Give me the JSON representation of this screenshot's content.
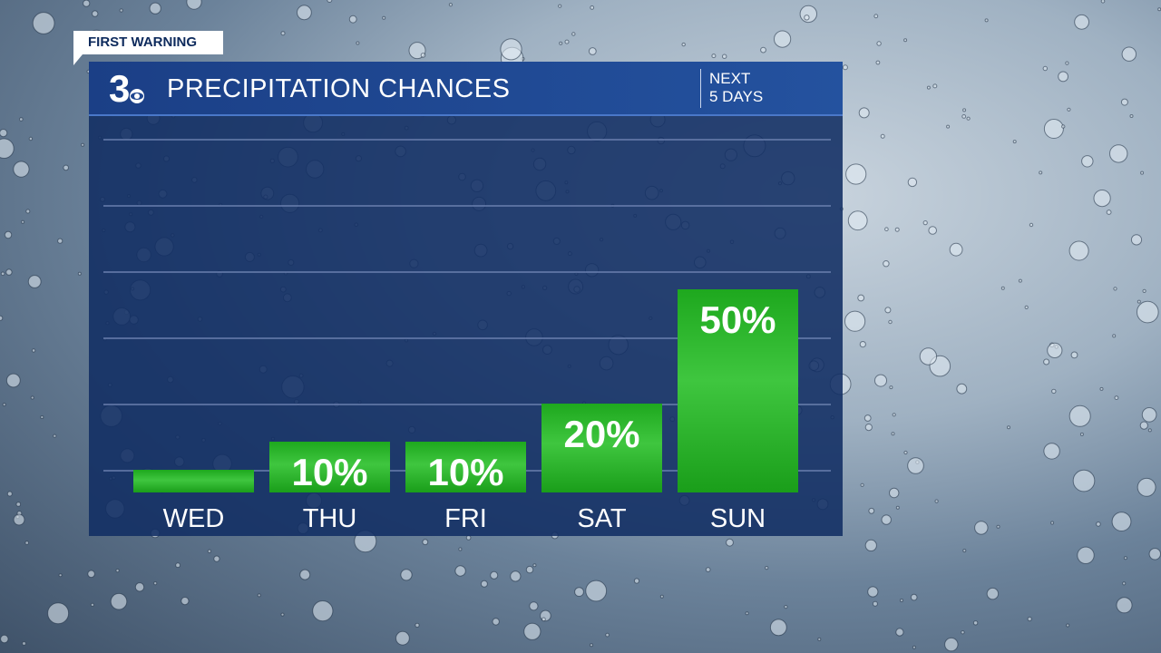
{
  "badge": {
    "label": "FIRST WARNING"
  },
  "header": {
    "logo_text": "3",
    "title": "PRECIPITATION CHANCES",
    "next_line1": "NEXT",
    "next_line2": "5 DAYS"
  },
  "colors": {
    "panel": "#112d63",
    "header": "#1f4690",
    "bar": "#1ba81b",
    "bar_highlight": "#3cc43c",
    "gridline": "#6f84b3"
  },
  "chart_data": {
    "type": "bar",
    "categories": [
      "WED",
      "THU",
      "FRI",
      "SAT",
      "SUN"
    ],
    "values": [
      0,
      10,
      10,
      20,
      50
    ],
    "labels": [
      "",
      "10%",
      "10%",
      "20%",
      "50%"
    ],
    "ylim": [
      0,
      80
    ],
    "grid": true
  }
}
